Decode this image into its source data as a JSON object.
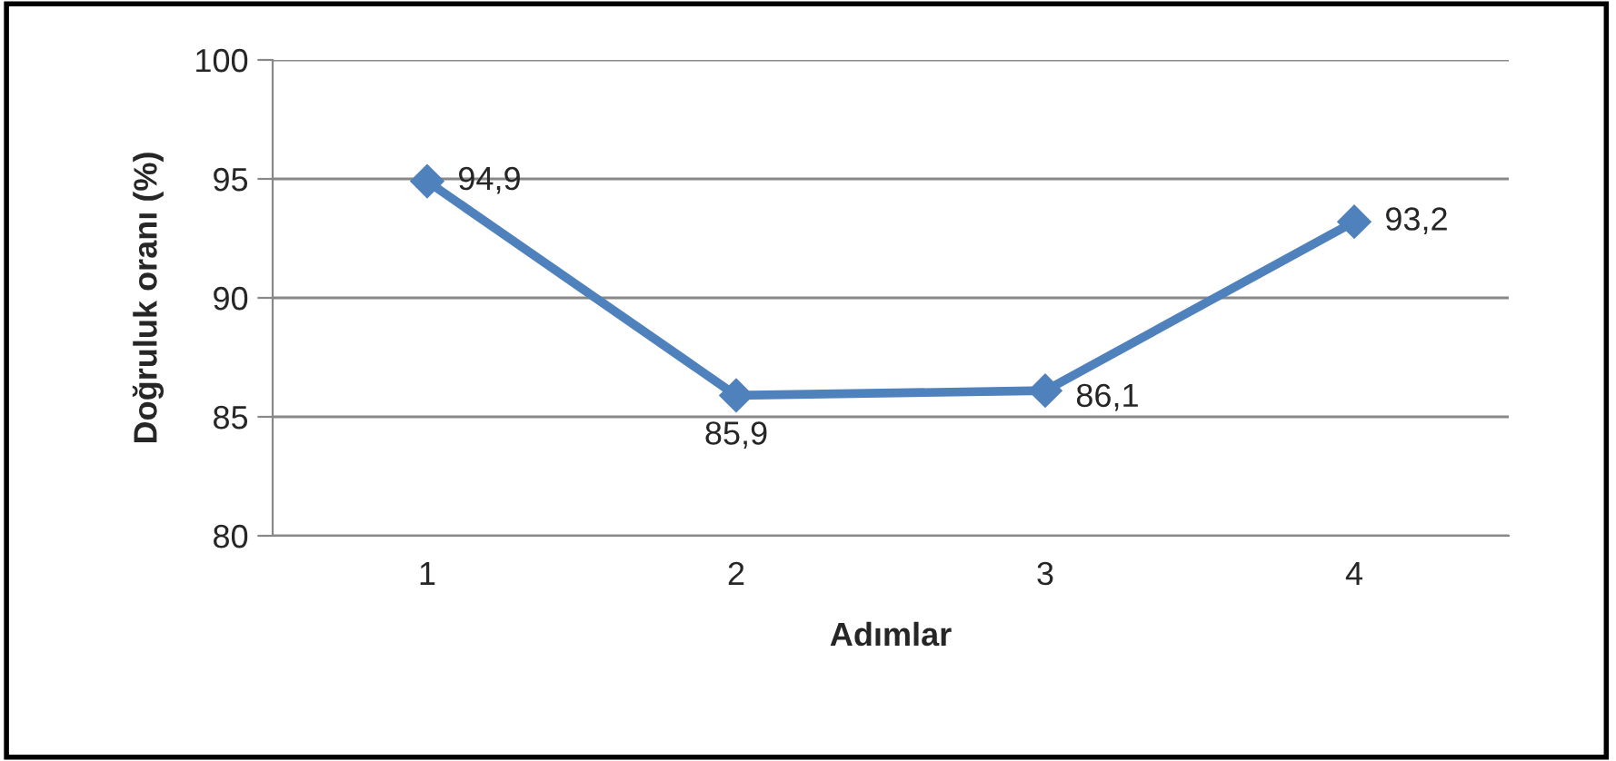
{
  "chart_data": {
    "type": "line",
    "xlabel": "Adımlar",
    "ylabel": "Doğruluk oranı (%)",
    "categories": [
      "1",
      "2",
      "3",
      "4"
    ],
    "series": [
      {
        "color": "#4f81bd",
        "values": [
          94.9,
          85.9,
          86.1,
          93.2
        ],
        "value_labels": [
          "94,9",
          "85,9",
          "86,1",
          "93,2"
        ]
      }
    ],
    "ylim": [
      80,
      100
    ],
    "yticks": [
      80,
      85,
      90,
      95,
      100
    ],
    "grid": "y",
    "marker": "diamond",
    "line_style": "solid",
    "legend": false
  }
}
